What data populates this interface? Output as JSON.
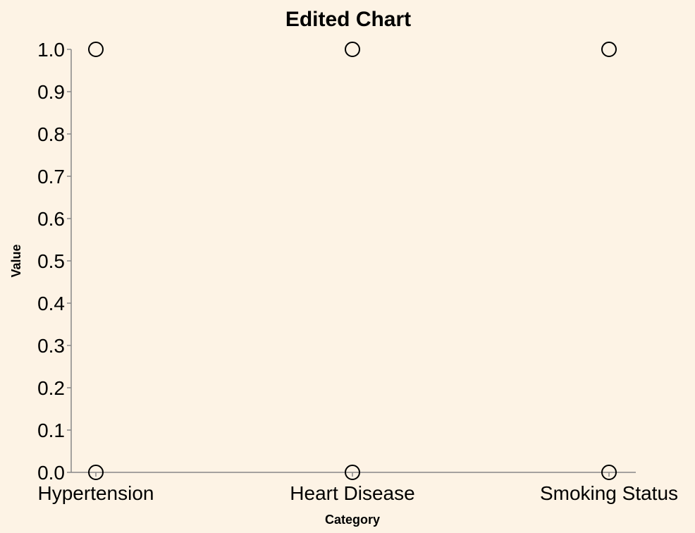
{
  "chart_data": {
    "type": "scatter",
    "title": "Edited Chart",
    "xlabel": "Category",
    "ylabel": "Value",
    "categories": [
      "Hypertension",
      "Heart Disease",
      "Smoking Status"
    ],
    "points": [
      {
        "category": "Hypertension",
        "value": 1.0
      },
      {
        "category": "Hypertension",
        "value": 0.0
      },
      {
        "category": "Heart Disease",
        "value": 1.0
      },
      {
        "category": "Heart Disease",
        "value": 0.0
      },
      {
        "category": "Smoking Status",
        "value": 1.0
      },
      {
        "category": "Smoking Status",
        "value": 0.0
      }
    ],
    "ylim": [
      0,
      1.0
    ],
    "yticks": [
      "0.0",
      "0.1",
      "0.2",
      "0.3",
      "0.4",
      "0.5",
      "0.6",
      "0.7",
      "0.8",
      "0.9",
      "1.0"
    ],
    "grid": false,
    "legend": "none",
    "colors": {
      "background": "#fdf3e5",
      "axis": "#888888",
      "point_stroke": "#000000"
    }
  }
}
